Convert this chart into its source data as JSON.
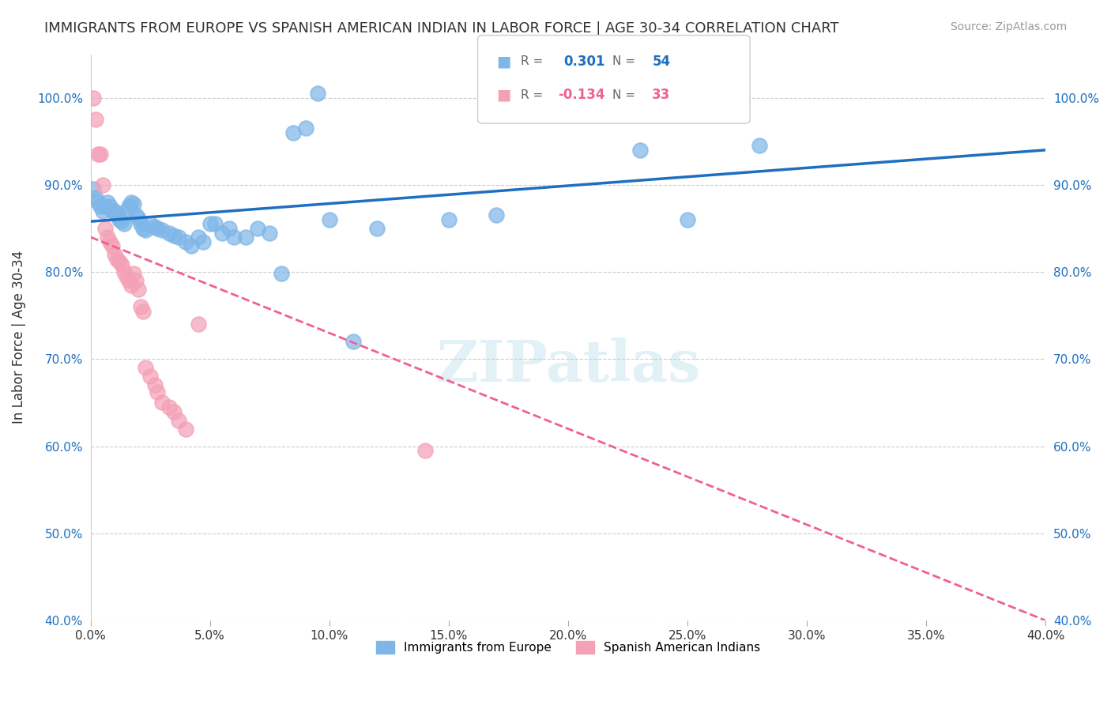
{
  "title": "IMMIGRANTS FROM EUROPE VS SPANISH AMERICAN INDIAN IN LABOR FORCE | AGE 30-34 CORRELATION CHART",
  "source": "Source: ZipAtlas.com",
  "ylabel": "In Labor Force | Age 30-34",
  "xlim": [
    0.0,
    0.4
  ],
  "ylim": [
    0.4,
    1.05
  ],
  "xticks": [
    0.0,
    0.05,
    0.1,
    0.15,
    0.2,
    0.25,
    0.3,
    0.35,
    0.4
  ],
  "yticks": [
    0.4,
    0.5,
    0.6,
    0.7,
    0.8,
    0.9,
    1.0
  ],
  "ytick_labels": [
    "40.0%",
    "50.0%",
    "60.0%",
    "70.0%",
    "80.0%",
    "90.0%",
    "100.0%"
  ],
  "xtick_labels": [
    "0.0%",
    "5.0%",
    "10.0%",
    "15.0%",
    "20.0%",
    "25.0%",
    "30.0%",
    "35.0%",
    "40.0%"
  ],
  "blue_R": "0.301",
  "blue_N": "54",
  "pink_R": "-0.134",
  "pink_N": "33",
  "blue_color": "#7EB6E8",
  "pink_color": "#F4A0B5",
  "blue_line_color": "#1E6FBF",
  "pink_line_color": "#F06090",
  "watermark": "ZIPatlas",
  "blue_scatter_x": [
    0.001,
    0.002,
    0.003,
    0.004,
    0.005,
    0.006,
    0.007,
    0.008,
    0.009,
    0.01,
    0.011,
    0.012,
    0.013,
    0.014,
    0.015,
    0.016,
    0.017,
    0.018,
    0.019,
    0.02,
    0.021,
    0.022,
    0.023,
    0.025,
    0.027,
    0.028,
    0.03,
    0.033,
    0.035,
    0.037,
    0.04,
    0.042,
    0.045,
    0.047,
    0.05,
    0.052,
    0.055,
    0.058,
    0.06,
    0.065,
    0.07,
    0.075,
    0.08,
    0.085,
    0.09,
    0.095,
    0.1,
    0.11,
    0.12,
    0.15,
    0.17,
    0.23,
    0.25,
    0.28
  ],
  "blue_scatter_y": [
    0.895,
    0.885,
    0.88,
    0.875,
    0.87,
    0.875,
    0.88,
    0.875,
    0.87,
    0.87,
    0.865,
    0.86,
    0.858,
    0.855,
    0.87,
    0.875,
    0.88,
    0.878,
    0.865,
    0.862,
    0.855,
    0.85,
    0.848,
    0.855,
    0.852,
    0.85,
    0.848,
    0.845,
    0.842,
    0.84,
    0.835,
    0.83,
    0.84,
    0.835,
    0.855,
    0.855,
    0.845,
    0.85,
    0.84,
    0.84,
    0.85,
    0.845,
    0.798,
    0.96,
    0.965,
    1.005,
    0.86,
    0.72,
    0.85,
    0.86,
    0.865,
    0.94,
    0.86,
    0.945
  ],
  "pink_scatter_x": [
    0.001,
    0.002,
    0.003,
    0.004,
    0.005,
    0.006,
    0.007,
    0.008,
    0.009,
    0.01,
    0.011,
    0.012,
    0.013,
    0.014,
    0.015,
    0.016,
    0.017,
    0.018,
    0.019,
    0.02,
    0.021,
    0.022,
    0.023,
    0.025,
    0.027,
    0.028,
    0.03,
    0.033,
    0.035,
    0.037,
    0.04,
    0.045,
    0.14
  ],
  "pink_scatter_y": [
    1.0,
    0.975,
    0.935,
    0.935,
    0.9,
    0.85,
    0.84,
    0.835,
    0.83,
    0.82,
    0.815,
    0.812,
    0.808,
    0.8,
    0.795,
    0.79,
    0.785,
    0.798,
    0.79,
    0.78,
    0.76,
    0.755,
    0.69,
    0.68,
    0.67,
    0.662,
    0.65,
    0.645,
    0.64,
    0.63,
    0.62,
    0.74,
    0.595
  ],
  "blue_trend_x": [
    0.0,
    0.4
  ],
  "blue_trend_y": [
    0.858,
    0.94
  ],
  "pink_trend_x": [
    0.0,
    0.4
  ],
  "pink_trend_y": [
    0.84,
    0.4
  ],
  "legend_blue_label": "Immigrants from Europe",
  "legend_pink_label": "Spanish American Indians"
}
